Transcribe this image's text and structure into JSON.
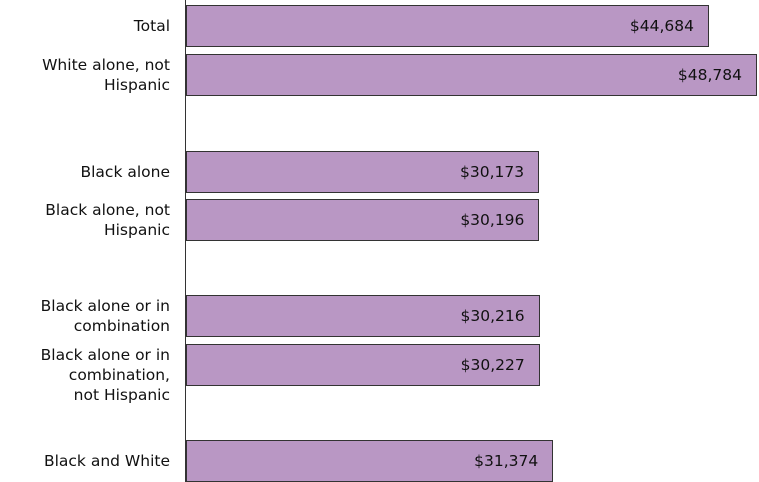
{
  "chart_data": {
    "type": "bar",
    "orientation": "horizontal",
    "categories": [
      "Total",
      "White alone, not\nHispanic",
      "Black alone",
      "Black alone, not\nHispanic",
      "Black alone or in\ncombination",
      "Black alone or in\ncombination,\nnot Hispanic",
      "Black and White"
    ],
    "values": [
      44684,
      48784,
      30173,
      30196,
      30216,
      30227,
      31374
    ],
    "value_labels": [
      "$44,684",
      "$48,784",
      "$30,173",
      "$30,196",
      "$30,216",
      "$30,227",
      "$31,374"
    ],
    "color": "#b997c4"
  }
}
